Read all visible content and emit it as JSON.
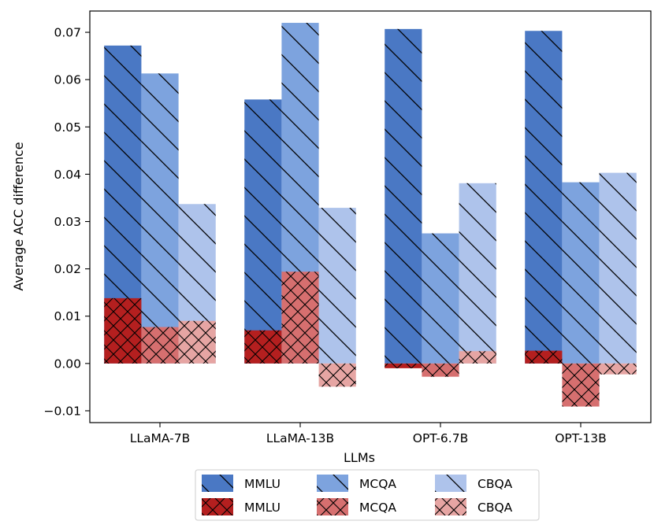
{
  "chart_data": {
    "type": "bar",
    "xlabel": "LLMs",
    "ylabel": "Average ACC difference",
    "ylim": [
      -0.0125,
      0.0745
    ],
    "yticks": [
      -0.01,
      0.0,
      0.01,
      0.02,
      0.03,
      0.04,
      0.05,
      0.06,
      0.07
    ],
    "ytick_labels": [
      "−0.01",
      "0.00",
      "0.01",
      "0.02",
      "0.03",
      "0.04",
      "0.05",
      "0.06",
      "0.07"
    ],
    "categories": [
      "LLaMA-7B",
      "LLaMA-13B",
      "OPT-6.7B",
      "OPT-13B"
    ],
    "series_groups": [
      {
        "hatch": "diagonal",
        "series": [
          {
            "name": "MMLU",
            "color": "#4a78c4",
            "values": [
              0.0672,
              0.0558,
              0.0707,
              0.0703
            ]
          },
          {
            "name": "MCQA",
            "color": "#7da3de",
            "values": [
              0.0613,
              0.072,
              0.0275,
              0.0383
            ]
          },
          {
            "name": "CBQA",
            "color": "#aec3eb",
            "values": [
              0.0337,
              0.0329,
              0.0381,
              0.0403
            ]
          }
        ]
      },
      {
        "hatch": "cross",
        "series": [
          {
            "name": "MMLU",
            "color": "#b41f1f",
            "values": [
              0.0138,
              0.007,
              -0.001,
              0.0027
            ]
          },
          {
            "name": "MCQA",
            "color": "#d66f6f",
            "values": [
              0.0077,
              0.0194,
              -0.0028,
              -0.0091
            ]
          },
          {
            "name": "CBQA",
            "color": "#e6a5a3",
            "values": [
              0.009,
              -0.0049,
              0.0026,
              -0.0023
            ]
          }
        ]
      }
    ],
    "legend": {
      "placement": "below",
      "columns": 3,
      "entries": [
        {
          "label": "MMLU",
          "color": "#4a78c4",
          "hatch": "diagonal"
        },
        {
          "label": "MCQA",
          "color": "#7da3de",
          "hatch": "diagonal"
        },
        {
          "label": "CBQA",
          "color": "#aec3eb",
          "hatch": "diagonal"
        },
        {
          "label": "MMLU",
          "color": "#b41f1f",
          "hatch": "cross"
        },
        {
          "label": "MCQA",
          "color": "#d66f6f",
          "hatch": "cross"
        },
        {
          "label": "CBQA",
          "color": "#e6a5a3",
          "hatch": "cross"
        }
      ]
    }
  }
}
